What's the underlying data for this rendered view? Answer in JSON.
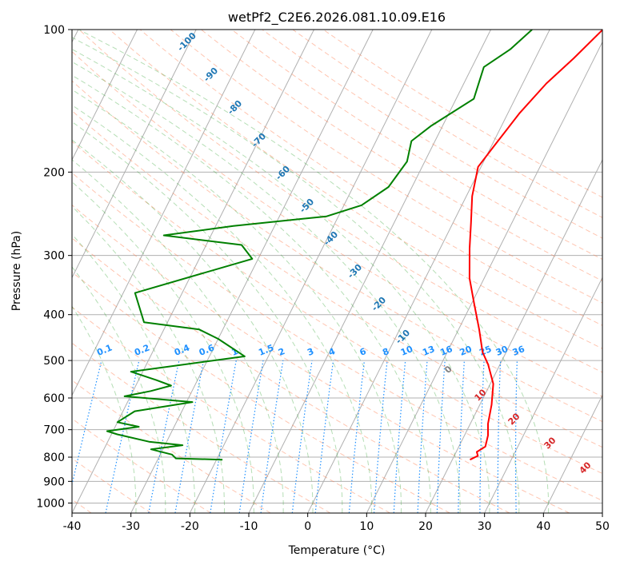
{
  "chart_data": {
    "type": "line",
    "title": "wetPf2_C2E6.2026.081.10.09.E16",
    "xlabel": "Temperature (°C)",
    "ylabel": "Pressure (hPa)",
    "xlim": [
      -40,
      50
    ],
    "ylim": [
      1050,
      100
    ],
    "y_scale": "log",
    "xticks": [
      -40,
      -30,
      -20,
      -10,
      0,
      10,
      20,
      30,
      40,
      50
    ],
    "yticks": [
      100,
      200,
      300,
      400,
      500,
      600,
      700,
      800,
      900,
      1000
    ],
    "grid": true,
    "skew": true,
    "series": [
      {
        "role": "temperature",
        "color": "#ff0000",
        "points": [
          [
            23,
            810
          ],
          [
            24,
            795
          ],
          [
            23.5,
            780
          ],
          [
            24.5,
            760
          ],
          [
            24,
            720
          ],
          [
            23,
            680
          ],
          [
            22,
            620
          ],
          [
            20.5,
            560
          ],
          [
            18,
            510
          ],
          [
            16,
            480
          ],
          [
            13.5,
            430
          ],
          [
            10.5,
            380
          ],
          [
            7.5,
            335
          ],
          [
            5,
            290
          ],
          [
            3,
            255
          ],
          [
            1,
            225
          ],
          [
            -0.5,
            195
          ],
          [
            0.5,
            175
          ],
          [
            2,
            150
          ],
          [
            4,
            130
          ],
          [
            6.5,
            115
          ],
          [
            9,
            100
          ]
        ]
      },
      {
        "role": "dewpoint",
        "color": "#008000",
        "points": [
          [
            -19,
            810
          ],
          [
            -27,
            805
          ],
          [
            -28,
            790
          ],
          [
            -32,
            770
          ],
          [
            -27,
            755
          ],
          [
            -33,
            742
          ],
          [
            -39,
            716
          ],
          [
            -41,
            705
          ],
          [
            -36,
            690
          ],
          [
            -40,
            675
          ],
          [
            -38,
            640
          ],
          [
            -29,
            612
          ],
          [
            -41,
            595
          ],
          [
            -37,
            580
          ],
          [
            -34,
            565
          ],
          [
            -37,
            550
          ],
          [
            -42,
            528
          ],
          [
            -24,
            490
          ],
          [
            -30,
            450
          ],
          [
            -34,
            430
          ],
          [
            -44,
            415
          ],
          [
            -48,
            360
          ],
          [
            -31,
            305
          ],
          [
            -34,
            285
          ],
          [
            -48,
            272
          ],
          [
            -37,
            260
          ],
          [
            -22,
            248
          ],
          [
            -17,
            235
          ],
          [
            -14,
            215
          ],
          [
            -13,
            190
          ],
          [
            -14,
            172
          ],
          [
            -12,
            160
          ],
          [
            -7,
            140
          ],
          [
            -8,
            120
          ],
          [
            -5,
            110
          ],
          [
            -3,
            100
          ]
        ]
      }
    ],
    "dry_adiabats": [
      -100,
      -90,
      -80,
      -70,
      -60,
      -50,
      -40,
      -30,
      -20,
      -10
    ],
    "mixing_ratio_labels": [
      "0.1",
      "0.2",
      "0.4",
      "0.6",
      "1",
      "1.5",
      "2",
      "3",
      "4",
      "6",
      "8",
      "10",
      "13",
      "16",
      "20",
      "25",
      "30",
      "36"
    ],
    "moist_adiabat_labels": [
      "0",
      "10",
      "20",
      "30",
      "40"
    ],
    "colors": {
      "dry_adiabat_label": "#1f77b4",
      "mixing_ratio": "#1e90ff",
      "moist_label": "#d62728",
      "moist_zero_label": "#808080"
    }
  }
}
